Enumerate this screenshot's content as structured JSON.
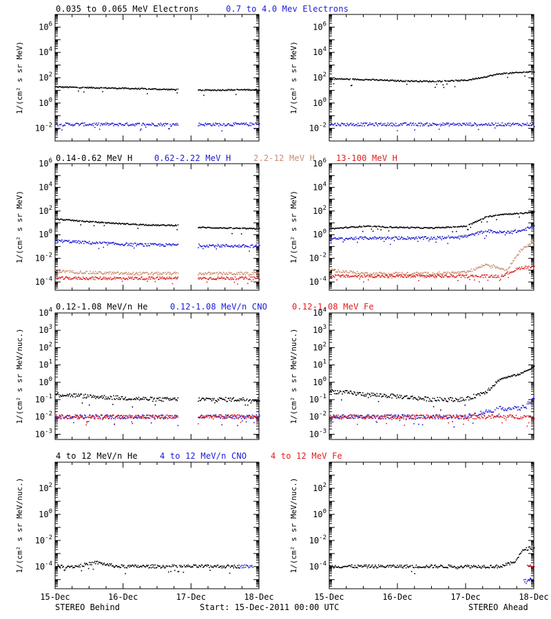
{
  "colors": {
    "black": "#000000",
    "blue": "#1a1ad6",
    "tan": "#c98c70",
    "red": "#e01b1b"
  },
  "rows": [
    {
      "labels": [
        {
          "text": "0.035 to 0.065 MeV Electrons",
          "color": "#000000"
        },
        {
          "text": "0.7 to 4.0 Mev Electrons",
          "color": "#1a1ad6"
        }
      ]
    },
    {
      "labels": [
        {
          "text": "0.14-0.62 MeV H",
          "color": "#000000"
        },
        {
          "text": "0.62-2.22 MeV H",
          "color": "#1a1ad6"
        },
        {
          "text": "2.2-12 MeV H",
          "color": "#c98c70"
        },
        {
          "text": "13-100 MeV H",
          "color": "#e01b1b"
        }
      ]
    },
    {
      "labels": [
        {
          "text": "0.12-1.08 MeV/n He",
          "color": "#000000"
        },
        {
          "text": "0.12-1.08 MeV/n CNO",
          "color": "#1a1ad6"
        },
        {
          "text": "0.12-1.08 MeV Fe",
          "color": "#e01b1b"
        }
      ]
    },
    {
      "labels": [
        {
          "text": "4 to 12 MeV/n He",
          "color": "#000000"
        },
        {
          "text": "4 to 12 MeV/n CNO",
          "color": "#1a1ad6"
        },
        {
          "text": "4 to 12 MeV Fe",
          "color": "#e01b1b"
        }
      ]
    }
  ],
  "footer": {
    "left": "STEREO Behind",
    "center": "Start: 15-Dec-2011 00:00 UTC",
    "right": "STEREO Ahead"
  },
  "chart_data": [
    {
      "type": "scatter",
      "panel": "electrons-behind",
      "y_scale": "log",
      "ylim": [
        0.001,
        10000000
      ],
      "ylabel": "1/(cm² s sr MeV)",
      "x": [
        "15-Dec",
        "16-Dec",
        "17-Dec",
        "18-Dec"
      ],
      "yticks": [
        "10^-2",
        "10^0",
        "10^2",
        "10^4",
        "10^6"
      ],
      "series": [
        {
          "name": "0.035 to 0.065 MeV Electrons",
          "color": "#000000",
          "x": [
            0,
            0.5,
            1.0,
            1.5,
            1.8,
            2.1,
            2.5,
            3.0
          ],
          "y": [
            18,
            16,
            14,
            12,
            11,
            10,
            10.5,
            11
          ]
        },
        {
          "name": "0.7 to 4.0 Mev Electrons",
          "color": "#1a1ad6",
          "x": [
            0,
            0.5,
            1.0,
            1.5,
            1.8,
            2.1,
            2.5,
            3.0
          ],
          "y": [
            0.02,
            0.02,
            0.02,
            0.02,
            0.02,
            0.02,
            0.02,
            0.02
          ]
        }
      ],
      "gap": [
        1.8,
        2.1
      ]
    },
    {
      "type": "scatter",
      "panel": "electrons-ahead",
      "y_scale": "log",
      "ylim": [
        0.001,
        10000000
      ],
      "ylabel": "1/(cm² s sr MeV)",
      "x": [
        "15-Dec",
        "16-Dec",
        "17-Dec",
        "18-Dec"
      ],
      "yticks": [
        "10^-2",
        "10^0",
        "10^2",
        "10^4",
        "10^6"
      ],
      "series": [
        {
          "name": "0.035 to 0.065 MeV Electrons",
          "color": "#000000",
          "x": [
            0,
            0.5,
            1.0,
            1.5,
            2.0,
            2.3,
            2.5,
            2.8,
            3.0
          ],
          "y": [
            80,
            70,
            55,
            50,
            60,
            120,
            200,
            250,
            300
          ]
        },
        {
          "name": "0.7 to 4.0 Mev Electrons",
          "color": "#1a1ad6",
          "x": [
            0,
            0.5,
            1.0,
            1.5,
            2.0,
            2.5,
            3.0
          ],
          "y": [
            0.02,
            0.02,
            0.02,
            0.02,
            0.02,
            0.02,
            0.02
          ]
        }
      ]
    },
    {
      "type": "scatter",
      "panel": "protons-behind",
      "y_scale": "log",
      "ylim": [
        2e-05,
        1000000
      ],
      "ylabel": "1/(cm² s sr MeV)",
      "x": [
        "15-Dec",
        "16-Dec",
        "17-Dec",
        "18-Dec"
      ],
      "yticks": [
        "10^-4",
        "10^-2",
        "10^0",
        "10^2",
        "10^4",
        "10^6"
      ],
      "series": [
        {
          "name": "0.14-0.62 MeV H",
          "color": "#000000",
          "x": [
            0,
            0.5,
            1.0,
            1.5,
            1.8,
            2.1,
            2.5,
            3.0
          ],
          "y": [
            20,
            12,
            8,
            6,
            6,
            4,
            3.5,
            3
          ]
        },
        {
          "name": "0.62-2.22 MeV H",
          "color": "#1a1ad6",
          "x": [
            0,
            0.5,
            1.0,
            1.5,
            1.8,
            2.1,
            2.5,
            3.0
          ],
          "y": [
            0.3,
            0.2,
            0.15,
            0.13,
            0.13,
            0.12,
            0.11,
            0.1
          ]
        },
        {
          "name": "2.2-12 MeV H",
          "color": "#c98c70",
          "x": [
            0,
            0.5,
            1.0,
            1.5,
            1.8,
            2.1,
            2.5,
            3.0
          ],
          "y": [
            0.0008,
            0.0006,
            0.0005,
            0.0005,
            0.0005,
            0.0005,
            0.0005,
            0.0005
          ]
        },
        {
          "name": "13-100 MeV H",
          "color": "#e01b1b",
          "x": [
            0,
            0.5,
            1.0,
            1.5,
            1.8,
            2.1,
            2.5,
            3.0
          ],
          "y": [
            0.0002,
            0.0002,
            0.0002,
            0.0002,
            0.0002,
            0.0002,
            0.0002,
            0.0002
          ]
        }
      ],
      "gap": [
        1.8,
        2.1
      ]
    },
    {
      "type": "scatter",
      "panel": "protons-ahead",
      "y_scale": "log",
      "ylim": [
        2e-05,
        1000000
      ],
      "ylabel": "1/(cm² s sr MeV)",
      "x": [
        "15-Dec",
        "16-Dec",
        "17-Dec",
        "18-Dec"
      ],
      "yticks": [
        "10^-4",
        "10^-2",
        "10^0",
        "10^2",
        "10^4",
        "10^6"
      ],
      "series": [
        {
          "name": "0.14-0.62 MeV H",
          "color": "#000000",
          "x": [
            0,
            0.5,
            1.0,
            1.5,
            2.0,
            2.3,
            2.5,
            2.8,
            3.0
          ],
          "y": [
            3,
            5,
            4,
            3.5,
            5,
            30,
            50,
            60,
            80
          ]
        },
        {
          "name": "0.62-2.22 MeV H",
          "color": "#1a1ad6",
          "x": [
            0,
            0.5,
            1.0,
            1.5,
            2.0,
            2.3,
            2.5,
            2.8,
            3.0
          ],
          "y": [
            0.4,
            0.5,
            0.5,
            0.5,
            0.7,
            2,
            1.5,
            2,
            5
          ]
        },
        {
          "name": "2.2-12 MeV H",
          "color": "#c98c70",
          "x": [
            0,
            0.5,
            1.0,
            1.5,
            2.0,
            2.3,
            2.6,
            2.8,
            3.0
          ],
          "y": [
            0.001,
            0.0005,
            0.0005,
            0.0005,
            0.0006,
            0.003,
            0.001,
            0.05,
            0.3
          ]
        },
        {
          "name": "13-100 MeV H",
          "color": "#e01b1b",
          "x": [
            0,
            0.5,
            1.0,
            1.5,
            2.0,
            2.5,
            2.8,
            3.0
          ],
          "y": [
            0.0003,
            0.0003,
            0.0003,
            0.0003,
            0.0003,
            0.0003,
            0.0015,
            0.002
          ]
        }
      ]
    },
    {
      "type": "scatter",
      "panel": "heavy-low-behind",
      "y_scale": "log",
      "ylim": [
        0.0005,
        10000
      ],
      "ylabel": "1/(cm² s sr MeV/nuc.)",
      "x": [
        "15-Dec",
        "16-Dec",
        "17-Dec",
        "18-Dec"
      ],
      "yticks": [
        "10^-3",
        "10^-2",
        "10^-1",
        "10^0",
        "10^1",
        "10^2",
        "10^3",
        "10^4"
      ],
      "series": [
        {
          "name": "0.12-1.08 MeV/n He",
          "color": "#000000",
          "x": [
            0,
            0.5,
            1.0,
            1.5,
            1.8,
            2.1,
            2.5,
            3.0
          ],
          "y": [
            0.2,
            0.15,
            0.12,
            0.1,
            0.1,
            0.1,
            0.1,
            0.1
          ]
        },
        {
          "name": "0.12-1.08 MeV/n CNO",
          "color": "#1a1ad6",
          "x": [
            0,
            0.5,
            1.0,
            1.5,
            1.8,
            2.1,
            2.5,
            3.0
          ],
          "y": [
            0.01,
            0.01,
            0.01,
            0.01,
            0.01,
            0.01,
            0.01,
            0.01
          ]
        },
        {
          "name": "0.12-1.08 MeV Fe",
          "color": "#e01b1b",
          "x": [
            0,
            0.5,
            1.0,
            1.5,
            1.8,
            2.1,
            2.5,
            3.0
          ],
          "y": [
            0.01,
            0.01,
            0.01,
            0.01,
            0.01,
            0.01,
            0.01,
            0.01
          ]
        }
      ],
      "gap": [
        1.8,
        2.1
      ]
    },
    {
      "type": "scatter",
      "panel": "heavy-low-ahead",
      "y_scale": "log",
      "ylim": [
        0.0005,
        10000
      ],
      "ylabel": "1/(cm² s sr MeV/nuc.)",
      "x": [
        "15-Dec",
        "16-Dec",
        "17-Dec",
        "18-Dec"
      ],
      "yticks": [
        "10^-3",
        "10^-2",
        "10^-1",
        "10^0",
        "10^1",
        "10^2",
        "10^3",
        "10^4"
      ],
      "series": [
        {
          "name": "0.12-1.08 MeV/n He",
          "color": "#000000",
          "x": [
            0,
            0.5,
            1.0,
            1.5,
            2.0,
            2.3,
            2.5,
            2.8,
            3.0
          ],
          "y": [
            0.3,
            0.2,
            0.15,
            0.1,
            0.1,
            0.3,
            1.5,
            3,
            8
          ]
        },
        {
          "name": "0.12-1.08 MeV/n CNO",
          "color": "#1a1ad6",
          "x": [
            0,
            0.5,
            1.0,
            1.5,
            2.0,
            2.3,
            2.5,
            2.8,
            3.0
          ],
          "y": [
            0.01,
            0.01,
            0.01,
            0.01,
            0.01,
            0.02,
            0.03,
            0.03,
            0.1
          ]
        },
        {
          "name": "0.12-1.08 MeV Fe",
          "color": "#e01b1b",
          "x": [
            0,
            0.5,
            1.0,
            1.5,
            2.0,
            2.5,
            3.0
          ],
          "y": [
            0.01,
            0.01,
            0.01,
            0.01,
            0.01,
            0.01,
            0.01
          ]
        }
      ]
    },
    {
      "type": "scatter",
      "panel": "heavy-high-behind",
      "y_scale": "log",
      "ylim": [
        2e-06,
        10000
      ],
      "ylabel": "1/(cm² s sr MeV/nuc.)",
      "x": [
        "15-Dec",
        "16-Dec",
        "17-Dec",
        "18-Dec"
      ],
      "yticks": [
        "10^-4",
        "10^-2",
        "10^0",
        "10^2"
      ],
      "series": [
        {
          "name": "4 to 12 MeV/n He",
          "color": "#000000",
          "x": [
            0,
            0.3,
            0.6,
            0.9,
            1.2,
            1.5,
            2.1,
            2.4,
            2.7
          ],
          "y": [
            0.0001,
            0.0001,
            0.0002,
            0.0001,
            0.0001,
            0.0001,
            0.0001,
            0.0001,
            0.0001
          ]
        },
        {
          "name": "4 to 12 MeV/n CNO",
          "color": "#1a1ad6",
          "x": [
            2.7,
            2.9
          ],
          "y": [
            0.0001,
            0.0001
          ]
        }
      ]
    },
    {
      "type": "scatter",
      "panel": "heavy-high-ahead",
      "y_scale": "log",
      "ylim": [
        2e-06,
        10000
      ],
      "ylabel": "1/(cm² s sr MeV/nuc.)",
      "x": [
        "15-Dec",
        "16-Dec",
        "17-Dec",
        "18-Dec"
      ],
      "yticks": [
        "10^-4",
        "10^-2",
        "10^0",
        "10^2"
      ],
      "series": [
        {
          "name": "4 to 12 MeV/n He",
          "color": "#000000",
          "x": [
            0,
            0.5,
            1.0,
            1.5,
            2.0,
            2.5,
            2.7,
            2.85,
            3.0
          ],
          "y": [
            0.0001,
            0.0001,
            0.0001,
            0.0001,
            0.0001,
            0.0001,
            0.0002,
            0.002,
            0.003
          ]
        },
        {
          "name": "4 to 12 MeV/n CNO",
          "color": "#1a1ad6",
          "x": [
            2.85,
            2.95
          ],
          "y": [
            8e-06,
            1e-05
          ]
        },
        {
          "name": "4 to 12 MeV Fe",
          "color": "#e01b1b",
          "x": [
            2.9,
            3.0
          ],
          "y": [
            0.0001,
            0.0001
          ]
        }
      ]
    }
  ]
}
